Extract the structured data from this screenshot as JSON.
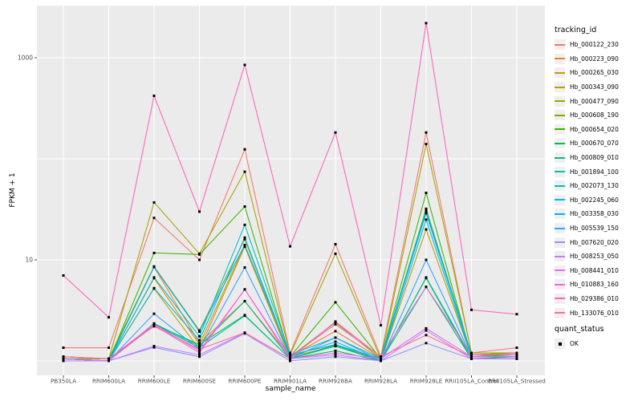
{
  "chart_data": {
    "type": "line",
    "title": "",
    "xlabel": "sample_name",
    "ylabel": "FPKM + 1",
    "y_scale": "log10",
    "ylim": [
      1,
      2500
    ],
    "grid": true,
    "panel_bg": "#EBEBEB",
    "grid_color": "#FFFFFF",
    "tick_label_color": "#4D4D4D",
    "point_marker": "black-square",
    "point_color": "#000000",
    "y_tick_labels": [
      {
        "label": "1000",
        "value": 1000
      },
      {
        "label": "10",
        "value": 10
      }
    ],
    "y_grid_values": [
      1000,
      100,
      10,
      1
    ],
    "categories": [
      "PB350LA",
      "RRIM600LA",
      "RRIM600LE",
      "RRIM600SE",
      "RRIM600PE",
      "RRIM901LA",
      "RRIM928BA",
      "RRIM928LA",
      "RRIM928LE",
      "RRII105LA_Control",
      "RRII105LA_Stressed"
    ],
    "legend_title": "tracking_id",
    "legend_position": "right",
    "series": [
      {
        "name": "Hb_000122_230",
        "color": "#F8766D",
        "values": [
          1.35,
          1.35,
          26,
          10,
          124,
          1.2,
          14.3,
          1.1,
          182,
          1.2,
          1.35
        ]
      },
      {
        "name": "Hb_000223_090",
        "color": "#EA8331",
        "values": [
          1.1,
          1.05,
          8.5,
          1.5,
          3.9,
          1.1,
          1.97,
          1.05,
          30,
          1.15,
          1.2
        ]
      },
      {
        "name": "Hb_000265_030",
        "color": "#D89000",
        "values": [
          1.05,
          1.0,
          6.6,
          1.45,
          14,
          1.1,
          1.4,
          1.05,
          29,
          1.15,
          1.2
        ]
      },
      {
        "name": "Hb_000343_090",
        "color": "#C09B00",
        "values": [
          1.05,
          1.0,
          5.2,
          1.3,
          13.5,
          1.05,
          1.45,
          1.0,
          20,
          1.1,
          1.1
        ]
      },
      {
        "name": "Hb_000477_090",
        "color": "#A3A500",
        "values": [
          1.1,
          1.05,
          37,
          11.5,
          74.5,
          1.15,
          11.5,
          1.05,
          140,
          1.2,
          1.2
        ]
      },
      {
        "name": "Hb_000608_190",
        "color": "#7CAE00",
        "values": [
          1.05,
          1.05,
          8.6,
          2.0,
          16,
          1.1,
          2.4,
          1.05,
          32,
          1.15,
          1.2
        ]
      },
      {
        "name": "Hb_000654_020",
        "color": "#39B600",
        "values": [
          1.05,
          1.0,
          11.7,
          11.3,
          33.7,
          1.1,
          3.8,
          1.05,
          46,
          1.1,
          1.15
        ]
      },
      {
        "name": "Hb_000670_070",
        "color": "#00BB4E",
        "values": [
          1.05,
          1.0,
          2.3,
          1.45,
          2.84,
          1.05,
          1.26,
          1.0,
          6.6,
          1.05,
          1.1
        ]
      },
      {
        "name": "Hb_000809_010",
        "color": "#00BF7D",
        "values": [
          1.0,
          1.0,
          2.35,
          1.4,
          3.9,
          1.05,
          1.43,
          1.0,
          5.4,
          1.05,
          1.05
        ]
      },
      {
        "name": "Hb_001894_100",
        "color": "#00C1A3",
        "values": [
          1.05,
          1.0,
          2.3,
          1.35,
          2.8,
          1.05,
          1.4,
          1.0,
          6.7,
          1.1,
          1.1
        ]
      },
      {
        "name": "Hb_002073_130",
        "color": "#00BFC4",
        "values": [
          1.05,
          1.0,
          6.7,
          1.75,
          22.2,
          1.15,
          1.7,
          1.05,
          29,
          1.15,
          1.15
        ]
      },
      {
        "name": "Hb_002245_060",
        "color": "#00BAE0",
        "values": [
          1.05,
          1.0,
          5.25,
          1.6,
          16.6,
          1.1,
          1.55,
          1.0,
          25,
          1.1,
          1.1
        ]
      },
      {
        "name": "Hb_003358_030",
        "color": "#00B0F6",
        "values": [
          1.05,
          1.0,
          8.5,
          1.95,
          14,
          1.15,
          1.45,
          1.05,
          31,
          1.15,
          1.15
        ]
      },
      {
        "name": "Hb_005539_150",
        "color": "#35A2FF",
        "values": [
          1.0,
          1.0,
          2.93,
          1.3,
          8.4,
          1.05,
          1.7,
          1.0,
          10,
          1.1,
          1.1
        ]
      },
      {
        "name": "Hb_007620_020",
        "color": "#9590FF",
        "values": [
          1.0,
          1.0,
          1.36,
          1.1,
          1.87,
          1.0,
          1.1,
          1.0,
          1.5,
          1.05,
          1.05
        ]
      },
      {
        "name": "Hb_008253_050",
        "color": "#C77CFF",
        "values": [
          1.0,
          1.0,
          1.4,
          1.15,
          1.9,
          1.05,
          1.15,
          1.0,
          2.0,
          1.05,
          1.05
        ]
      },
      {
        "name": "Hb_008441_010",
        "color": "#E76BF3",
        "values": [
          1.05,
          1.0,
          2.25,
          1.2,
          5.1,
          1.05,
          1.2,
          1.05,
          2.1,
          1.1,
          1.1
        ]
      },
      {
        "name": "Hb_010883_160",
        "color": "#FA62DB",
        "values": [
          1.1,
          1.05,
          2.3,
          1.25,
          5.1,
          1.1,
          2.3,
          1.1,
          5.4,
          1.15,
          1.15
        ]
      },
      {
        "name": "Hb_029386_010",
        "color": "#FF62BC",
        "values": [
          7.0,
          2.7,
          420,
          30,
          850,
          13.6,
          182,
          2.25,
          2200,
          3.2,
          2.9
        ]
      },
      {
        "name": "Hb_133076_010",
        "color": "#FF6A98",
        "values": [
          1.1,
          1.05,
          2.2,
          1.3,
          1.9,
          1.05,
          2.45,
          1.1,
          1.8,
          1.1,
          1.2
        ]
      }
    ],
    "quant_legend": {
      "title": "quant_status",
      "items": [
        {
          "label": "OK",
          "marker": "black-square"
        }
      ]
    }
  }
}
